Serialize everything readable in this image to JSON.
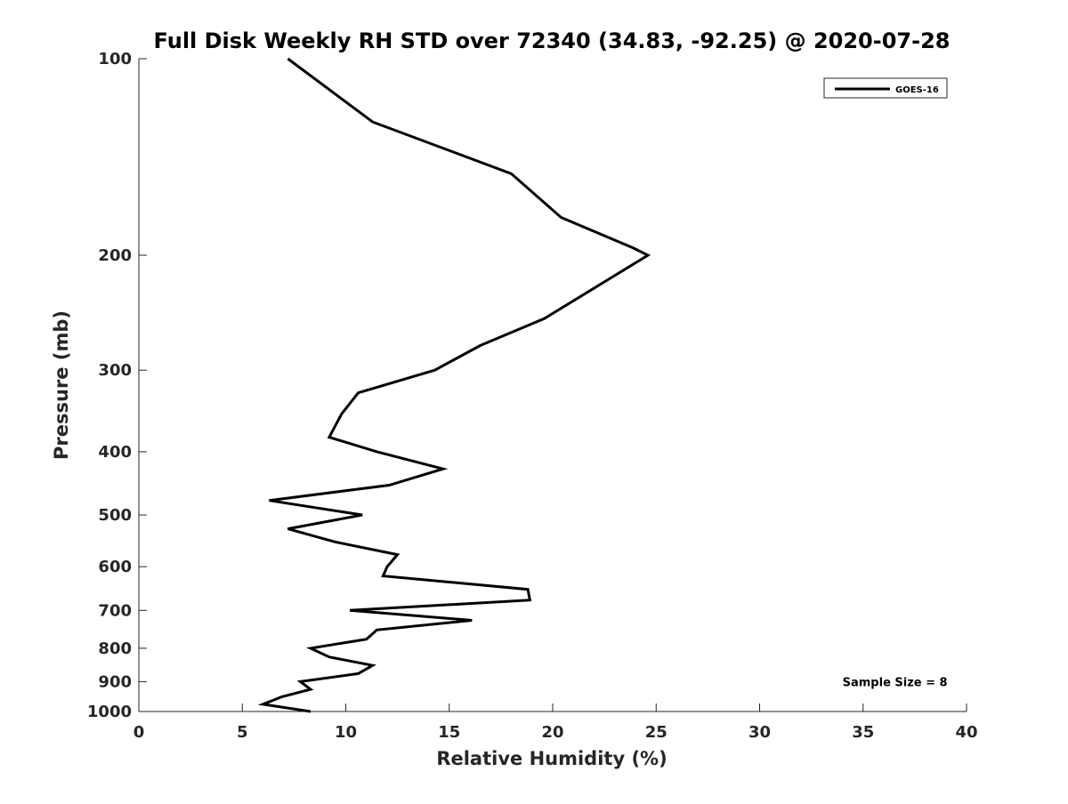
{
  "chart_data": {
    "type": "line",
    "title": "Full Disk Weekly RH STD over 72340 (34.83, -92.25) @ 2020-07-28",
    "xlabel": "Relative Humidity (%)",
    "ylabel": "Pressure (mb)",
    "xlim": [
      0,
      40
    ],
    "ylim": [
      100,
      1000
    ],
    "y_scale": "log",
    "y_reversed": true,
    "x_ticks": [
      "0",
      "5",
      "10",
      "15",
      "20",
      "25",
      "30",
      "35",
      "40"
    ],
    "y_ticks": [
      "100",
      "200",
      "300",
      "400",
      "500",
      "600",
      "700",
      "800",
      "900",
      "1000"
    ],
    "grid": false,
    "legend_position": "top-right",
    "series": [
      {
        "name": "GOES-16",
        "color": "#000000",
        "points": [
          [
            7.2,
            100
          ],
          [
            11.3,
            125
          ],
          [
            18.0,
            150
          ],
          [
            20.4,
            175
          ],
          [
            23.9,
            195
          ],
          [
            24.6,
            200
          ],
          [
            19.6,
            250
          ],
          [
            16.5,
            275
          ],
          [
            14.3,
            300
          ],
          [
            10.6,
            325
          ],
          [
            9.8,
            350
          ],
          [
            9.2,
            380
          ],
          [
            11.5,
            400
          ],
          [
            14.7,
            425
          ],
          [
            12.1,
            450
          ],
          [
            6.3,
            475
          ],
          [
            10.8,
            500
          ],
          [
            7.2,
            525
          ],
          [
            9.5,
            550
          ],
          [
            12.5,
            575
          ],
          [
            12.0,
            600
          ],
          [
            11.8,
            620
          ],
          [
            18.8,
            650
          ],
          [
            18.9,
            675
          ],
          [
            10.2,
            700
          ],
          [
            16.1,
            725
          ],
          [
            11.5,
            750
          ],
          [
            11.0,
            775
          ],
          [
            8.3,
            800
          ],
          [
            9.2,
            825
          ],
          [
            11.3,
            850
          ],
          [
            10.6,
            875
          ],
          [
            7.8,
            900
          ],
          [
            8.3,
            925
          ],
          [
            6.9,
            950
          ],
          [
            6.0,
            975
          ],
          [
            8.3,
            1000
          ]
        ]
      }
    ],
    "annotations": [
      {
        "text": "Sample Size = 8",
        "x": 36.5,
        "y": 900
      }
    ]
  }
}
